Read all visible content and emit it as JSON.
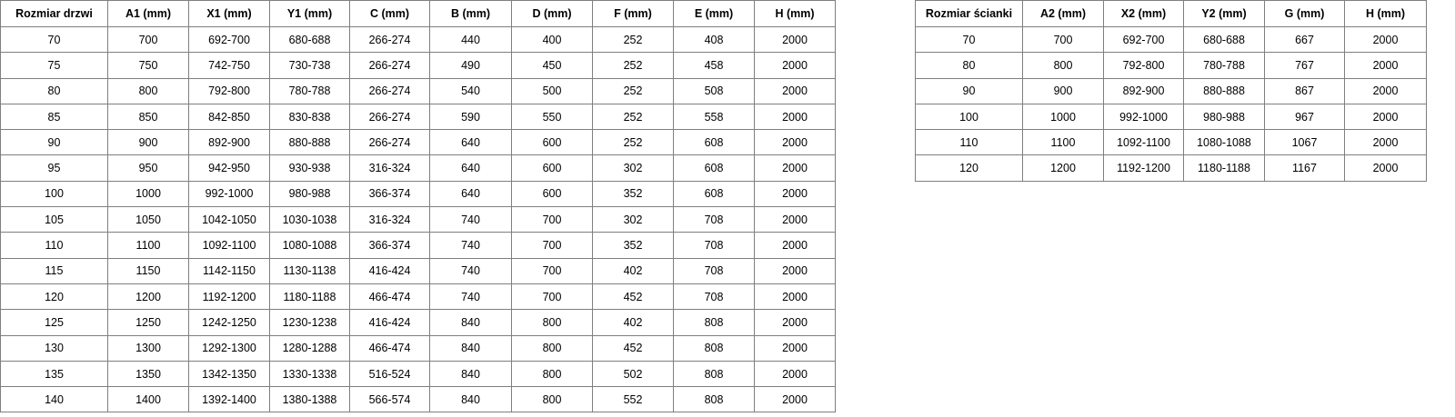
{
  "doors_table": {
    "headers": [
      "Rozmiar drzwi",
      "A1 (mm)",
      "X1 (mm)",
      "Y1 (mm)",
      "C (mm)",
      "B (mm)",
      "D (mm)",
      "F (mm)",
      "E (mm)",
      "H (mm)"
    ],
    "rows": [
      [
        "70",
        "700",
        "692-700",
        "680-688",
        "266-274",
        "440",
        "400",
        "252",
        "408",
        "2000"
      ],
      [
        "75",
        "750",
        "742-750",
        "730-738",
        "266-274",
        "490",
        "450",
        "252",
        "458",
        "2000"
      ],
      [
        "80",
        "800",
        "792-800",
        "780-788",
        "266-274",
        "540",
        "500",
        "252",
        "508",
        "2000"
      ],
      [
        "85",
        "850",
        "842-850",
        "830-838",
        "266-274",
        "590",
        "550",
        "252",
        "558",
        "2000"
      ],
      [
        "90",
        "900",
        "892-900",
        "880-888",
        "266-274",
        "640",
        "600",
        "252",
        "608",
        "2000"
      ],
      [
        "95",
        "950",
        "942-950",
        "930-938",
        "316-324",
        "640",
        "600",
        "302",
        "608",
        "2000"
      ],
      [
        "100",
        "1000",
        "992-1000",
        "980-988",
        "366-374",
        "640",
        "600",
        "352",
        "608",
        "2000"
      ],
      [
        "105",
        "1050",
        "1042-1050",
        "1030-1038",
        "316-324",
        "740",
        "700",
        "302",
        "708",
        "2000"
      ],
      [
        "110",
        "1100",
        "1092-1100",
        "1080-1088",
        "366-374",
        "740",
        "700",
        "352",
        "708",
        "2000"
      ],
      [
        "115",
        "1150",
        "1142-1150",
        "1130-1138",
        "416-424",
        "740",
        "700",
        "402",
        "708",
        "2000"
      ],
      [
        "120",
        "1200",
        "1192-1200",
        "1180-1188",
        "466-474",
        "740",
        "700",
        "452",
        "708",
        "2000"
      ],
      [
        "125",
        "1250",
        "1242-1250",
        "1230-1238",
        "416-424",
        "840",
        "800",
        "402",
        "808",
        "2000"
      ],
      [
        "130",
        "1300",
        "1292-1300",
        "1280-1288",
        "466-474",
        "840",
        "800",
        "452",
        "808",
        "2000"
      ],
      [
        "135",
        "1350",
        "1342-1350",
        "1330-1338",
        "516-524",
        "840",
        "800",
        "502",
        "808",
        "2000"
      ],
      [
        "140",
        "1400",
        "1392-1400",
        "1380-1388",
        "566-574",
        "840",
        "800",
        "552",
        "808",
        "2000"
      ]
    ]
  },
  "wall_table": {
    "headers": [
      "Rozmiar ścianki",
      "A2 (mm)",
      "X2 (mm)",
      "Y2 (mm)",
      "G (mm)",
      "H (mm)"
    ],
    "rows": [
      [
        "70",
        "700",
        "692-700",
        "680-688",
        "667",
        "2000"
      ],
      [
        "80",
        "800",
        "792-800",
        "780-788",
        "767",
        "2000"
      ],
      [
        "90",
        "900",
        "892-900",
        "880-888",
        "867",
        "2000"
      ],
      [
        "100",
        "1000",
        "992-1000",
        "980-988",
        "967",
        "2000"
      ],
      [
        "110",
        "1100",
        "1092-1100",
        "1080-1088",
        "1067",
        "2000"
      ],
      [
        "120",
        "1200",
        "1192-1200",
        "1180-1188",
        "1167",
        "2000"
      ]
    ]
  }
}
